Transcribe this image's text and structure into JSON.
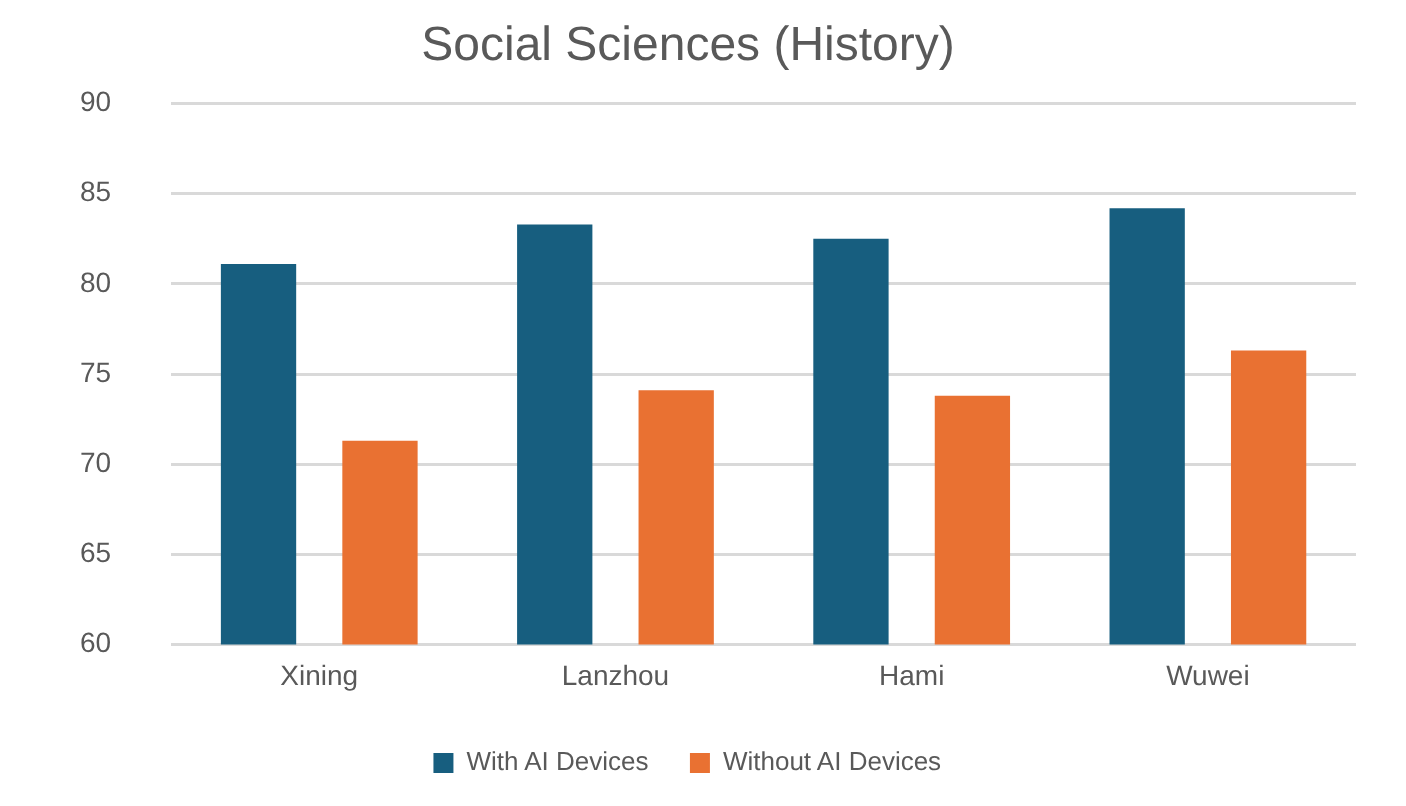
{
  "chart_data": {
    "type": "bar",
    "title": "Social Sciences (History)",
    "categories": [
      "Xining",
      "Lanzhou",
      "Hami",
      "Wuwei"
    ],
    "series": [
      {
        "name": "With AI Devices",
        "color": "#175e7f",
        "values": [
          81.1,
          83.3,
          82.5,
          84.2
        ]
      },
      {
        "name": "Without AI Devices",
        "color": "#e97132",
        "values": [
          71.3,
          74.1,
          73.8,
          76.3
        ]
      }
    ],
    "ylim": [
      60,
      90
    ],
    "yticks": [
      60,
      65,
      70,
      75,
      80,
      85,
      90
    ],
    "grid": "y",
    "legend": "bottom"
  }
}
